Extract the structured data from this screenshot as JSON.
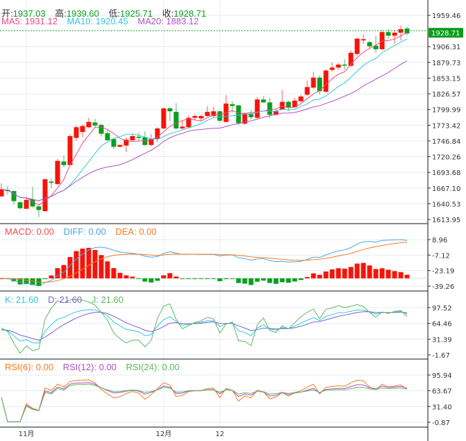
{
  "header": {
    "open_label": "开:",
    "open": "1937.03",
    "high_label": "高:",
    "high": "1939.60",
    "low_label": "低:",
    "low": "1925.71",
    "close_label": "收:",
    "close": "1928.71",
    "ma5": "MA5: 1931.12",
    "ma10": "MA10: 1920.45",
    "ma20": "MA20: 1883.12"
  },
  "macd_header": {
    "macd": "MACD: 0.00",
    "diff": "DIFF: 0.00",
    "dea": "DEA: 0.00"
  },
  "kdj_header": {
    "k": "K: 21.60",
    "d": "D: 21.60",
    "j": "J: 21.60"
  },
  "rsi_header": {
    "rsi6": "RSI(6): 0.00",
    "rsi12": "RSI(12): 0.00",
    "rsi24": "RSI(24): 0.00"
  },
  "colors": {
    "up": "#f5140a",
    "down": "#0a9e1e",
    "ma5": "#f0497a",
    "ma10": "#2ec7dc",
    "ma20": "#b050c8",
    "diff": "#4aa3e8",
    "dea": "#f57b1e",
    "k": "#2ec7dc",
    "d": "#7b5fcf",
    "j": "#5cb85c",
    "rsi6": "#f57b1e",
    "rsi12": "#b050c8",
    "rsi24": "#5cb85c",
    "last_price_bg": "#0a9e1e"
  },
  "chart_data": {
    "type": "candlestick",
    "last_price": "1928.71",
    "price_ticks": [
      "1959.46",
      "1906.31",
      "1879.73",
      "1853.15",
      "1826.57",
      "1799.99",
      "1773.42",
      "1746.84",
      "1720.26",
      "1693.68",
      "1667.10",
      "1640.53",
      "1613.95"
    ],
    "price_range": [
      1613.95,
      1959.46
    ],
    "macd_ticks": [
      "8.96",
      "-7.12",
      "-23.19",
      "-39.26"
    ],
    "kdj_ticks": [
      "97.52",
      "64.46",
      "31.39",
      "-1.67"
    ],
    "rsi_ticks": [
      "95.94",
      "63.67",
      "31.40",
      "-0.87"
    ],
    "x_labels": [
      {
        "label": "11月",
        "index": 4
      },
      {
        "label": "12月",
        "index": 26
      },
      {
        "label": "12",
        "index": 35
      }
    ],
    "grid": true,
    "ohlc": [
      [
        1653,
        1675,
        1652,
        1665
      ],
      [
        1664,
        1671,
        1656,
        1662
      ],
      [
        1662,
        1663,
        1639,
        1645
      ],
      [
        1643,
        1645,
        1631,
        1633
      ],
      [
        1632,
        1652,
        1632,
        1647
      ],
      [
        1648,
        1669,
        1634,
        1636
      ],
      [
        1636,
        1640,
        1618,
        1630
      ],
      [
        1628,
        1683,
        1627,
        1682
      ],
      [
        1678,
        1683,
        1667,
        1676
      ],
      [
        1674,
        1717,
        1672,
        1713
      ],
      [
        1712,
        1722,
        1702,
        1706
      ],
      [
        1706,
        1758,
        1706,
        1755
      ],
      [
        1752,
        1773,
        1747,
        1770
      ],
      [
        1762,
        1775,
        1753,
        1772
      ],
      [
        1770,
        1786,
        1768,
        1779
      ],
      [
        1778,
        1784,
        1770,
        1773
      ],
      [
        1774,
        1776,
        1754,
        1759
      ],
      [
        1760,
        1766,
        1747,
        1748
      ],
      [
        1750,
        1751,
        1733,
        1737
      ],
      [
        1737,
        1741,
        1736,
        1740
      ],
      [
        1739,
        1753,
        1728,
        1749
      ],
      [
        1748,
        1759,
        1747,
        1755
      ],
      [
        1754,
        1761,
        1747,
        1752
      ],
      [
        1753,
        1763,
        1738,
        1740
      ],
      [
        1740,
        1759,
        1738,
        1750
      ],
      [
        1750,
        1770,
        1745,
        1768
      ],
      [
        1768,
        1803,
        1766,
        1802
      ],
      [
        1802,
        1804,
        1780,
        1797
      ],
      [
        1796,
        1811,
        1766,
        1768
      ],
      [
        1768,
        1782,
        1766,
        1771
      ],
      [
        1770,
        1790,
        1768,
        1786
      ],
      [
        1786,
        1792,
        1782,
        1789
      ],
      [
        1785,
        1791,
        1781,
        1789
      ],
      [
        1789,
        1806,
        1788,
        1796
      ],
      [
        1789,
        1805,
        1787,
        1797
      ],
      [
        1797,
        1798,
        1778,
        1781
      ],
      [
        1779,
        1824,
        1778,
        1810
      ],
      [
        1809,
        1814,
        1795,
        1806
      ],
      [
        1807,
        1808,
        1774,
        1777
      ],
      [
        1776,
        1795,
        1774,
        1793
      ],
      [
        1792,
        1799,
        1783,
        1787
      ],
      [
        1786,
        1821,
        1785,
        1817
      ],
      [
        1817,
        1823,
        1811,
        1812
      ],
      [
        1812,
        1820,
        1785,
        1791
      ],
      [
        1791,
        1801,
        1790,
        1797
      ],
      [
        1800,
        1833,
        1799,
        1813
      ],
      [
        1813,
        1815,
        1797,
        1803
      ],
      [
        1804,
        1820,
        1803,
        1815
      ],
      [
        1814,
        1825,
        1812,
        1822
      ],
      [
        1825,
        1849,
        1823,
        1838
      ],
      [
        1837,
        1864,
        1835,
        1854
      ],
      [
        1854,
        1858,
        1825,
        1831
      ],
      [
        1830,
        1868,
        1829,
        1866
      ],
      [
        1867,
        1880,
        1864,
        1871
      ],
      [
        1871,
        1879,
        1867,
        1876
      ],
      [
        1876,
        1885,
        1867,
        1875
      ],
      [
        1874,
        1900,
        1872,
        1896
      ],
      [
        1894,
        1921,
        1891,
        1920
      ],
      [
        1917,
        1927,
        1911,
        1919
      ],
      [
        1914,
        1916,
        1904,
        1907
      ],
      [
        1908,
        1925,
        1896,
        1902
      ],
      [
        1902,
        1934,
        1901,
        1931
      ],
      [
        1931,
        1936,
        1920,
        1925
      ],
      [
        1925,
        1935,
        1911,
        1930
      ],
      [
        1930,
        1942,
        1917,
        1936
      ],
      [
        1937.03,
        1939.6,
        1925.71,
        1928.71
      ]
    ]
  }
}
